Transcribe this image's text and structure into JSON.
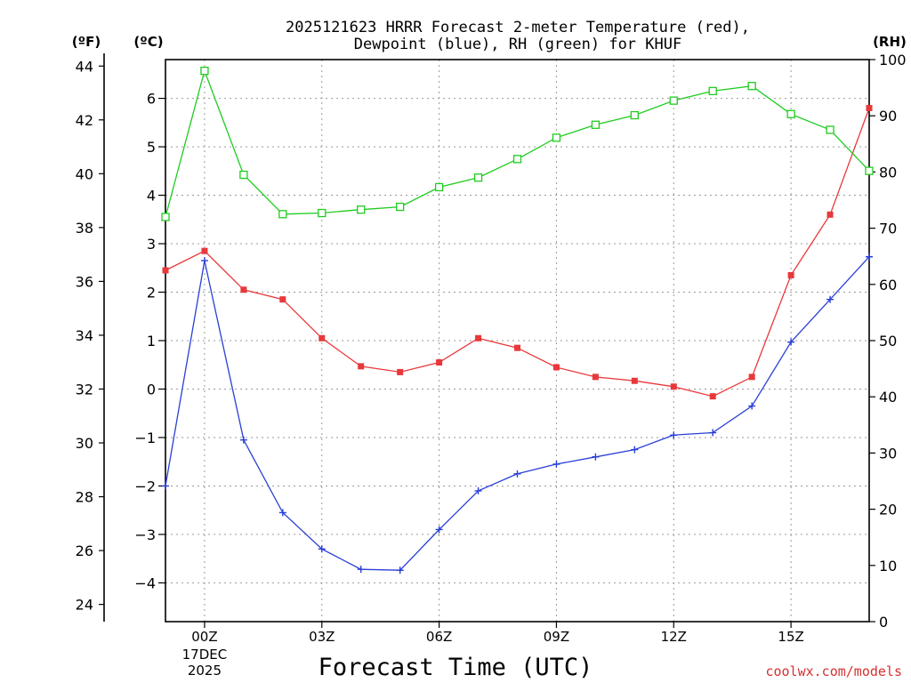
{
  "chart_data": {
    "type": "line",
    "title_line1": "2025121623 HRRR Forecast 2-meter Temperature (red),",
    "title_line2": "Dewpoint (blue), RH (green) for KHUF",
    "left_outer_unit": "(ºF)",
    "left_inner_unit": "(ºC)",
    "right_unit": "(RH)",
    "xlabel": "Forecast Time (UTC)",
    "watermark": "coolwx.com/models",
    "x_hours": [
      -1,
      0,
      1,
      2,
      3,
      4,
      5,
      6,
      7,
      8,
      9,
      10,
      11,
      12,
      13,
      14,
      15,
      16,
      17
    ],
    "x_range": [
      -1,
      17
    ],
    "x_ticks": [
      {
        "hour": 0,
        "label": "00Z",
        "sub1": "17DEC",
        "sub2": "2025"
      },
      {
        "hour": 3,
        "label": "03Z"
      },
      {
        "hour": 6,
        "label": "06Z"
      },
      {
        "hour": 9,
        "label": "09Z"
      },
      {
        "hour": 12,
        "label": "12Z"
      },
      {
        "hour": 15,
        "label": "15Z"
      }
    ],
    "celsius_range": [
      -4.8,
      6.8
    ],
    "celsius_ticks": [
      "-4",
      "-3",
      "-2",
      "-1",
      "0",
      "1",
      "2",
      "3",
      "4",
      "5",
      "6"
    ],
    "fahrenheit_ticks": [
      "24",
      "26",
      "28",
      "30",
      "32",
      "34",
      "36",
      "38",
      "40",
      "42",
      "44"
    ],
    "rh_range": [
      0,
      100
    ],
    "rh_ticks": [
      "0",
      "10",
      "20",
      "30",
      "40",
      "50",
      "60",
      "70",
      "80",
      "90",
      "100"
    ],
    "series": [
      {
        "name": "Temperature",
        "color": "#e8383a",
        "marker": "filled-square",
        "values": [
          2.45,
          2.85,
          2.05,
          1.85,
          1.05,
          0.47,
          0.35,
          0.55,
          1.05,
          0.85,
          0.45,
          0.25,
          0.17,
          0.05,
          -0.15,
          0.25,
          2.35,
          3.6,
          5.8
        ]
      },
      {
        "name": "Dewpoint",
        "color": "#2a3fd6",
        "marker": "plus",
        "values": [
          -2.0,
          2.65,
          -1.05,
          -2.55,
          -3.3,
          -3.72,
          -3.74,
          -2.9,
          -2.1,
          -1.75,
          -1.55,
          -1.4,
          -1.25,
          -0.95,
          -0.9,
          -0.35,
          0.97,
          1.85,
          2.73
        ]
      },
      {
        "name": "RH",
        "color": "#1fcc1f",
        "marker": "open-square",
        "values": [
          72,
          98,
          79.5,
          72.5,
          72.7,
          73.3,
          73.8,
          77.3,
          79,
          82.3,
          86.1,
          88.4,
          90.1,
          92.7,
          94.4,
          95.3,
          90.3,
          87.5,
          80.2
        ]
      }
    ]
  }
}
